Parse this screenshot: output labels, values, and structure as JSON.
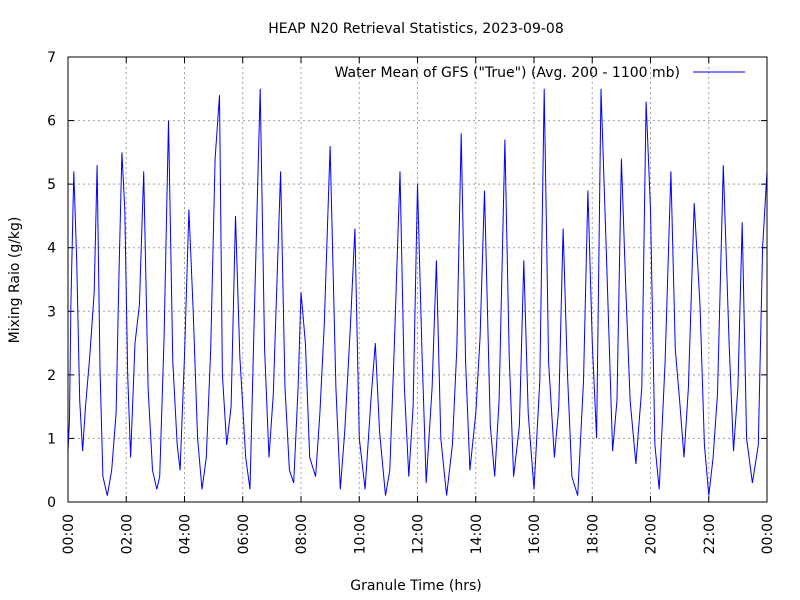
{
  "chart_data": {
    "type": "line",
    "title": "HEAP N20 Retrieval Statistics, 2023-09-08",
    "xlabel": "Granule Time (hrs)",
    "ylabel": "Mixing Raio (g/kg)",
    "xlim": [
      0,
      24
    ],
    "ylim": [
      0,
      7
    ],
    "grid": true,
    "legend_position": "top-right",
    "x_tick_values": [
      0,
      2,
      4,
      6,
      8,
      10,
      12,
      14,
      16,
      18,
      20,
      22,
      24
    ],
    "x_tick_labels": [
      "00:00",
      "02:00",
      "04:00",
      "06:00",
      "08:00",
      "10:00",
      "12:00",
      "14:00",
      "16:00",
      "18:00",
      "20:00",
      "22:00",
      "00:00"
    ],
    "y_tick_values": [
      0,
      1,
      2,
      3,
      4,
      5,
      6,
      7
    ],
    "y_tick_labels": [
      "0",
      "1",
      "2",
      "3",
      "4",
      "5",
      "6",
      "7"
    ],
    "series": [
      {
        "name": "Water Mean of GFS (\"True\") (Avg. 200 - 1100 mb)",
        "color": "#0000ff",
        "x": [
          0.0,
          0.05,
          0.1,
          0.2,
          0.3,
          0.4,
          0.5,
          0.6,
          0.75,
          0.9,
          1.0,
          1.1,
          1.2,
          1.35,
          1.5,
          1.65,
          1.75,
          1.85,
          1.95,
          2.05,
          2.15,
          2.3,
          2.45,
          2.6,
          2.75,
          2.9,
          3.05,
          3.15,
          3.3,
          3.45,
          3.6,
          3.75,
          3.85,
          4.0,
          4.15,
          4.3,
          4.45,
          4.6,
          4.75,
          4.9,
          5.05,
          5.2,
          5.3,
          5.45,
          5.6,
          5.75,
          5.9,
          6.1,
          6.25,
          6.4,
          6.6,
          6.75,
          6.9,
          7.05,
          7.15,
          7.3,
          7.45,
          7.6,
          7.75,
          7.9,
          8.0,
          8.15,
          8.3,
          8.5,
          8.65,
          8.8,
          9.0,
          9.2,
          9.35,
          9.5,
          9.7,
          9.85,
          10.0,
          10.2,
          10.4,
          10.55,
          10.7,
          10.9,
          11.05,
          11.2,
          11.4,
          11.55,
          11.7,
          11.85,
          12.0,
          12.15,
          12.3,
          12.5,
          12.65,
          12.8,
          13.0,
          13.2,
          13.35,
          13.5,
          13.65,
          13.8,
          14.0,
          14.15,
          14.3,
          14.5,
          14.65,
          14.8,
          15.0,
          15.15,
          15.3,
          15.5,
          15.65,
          15.8,
          16.0,
          16.2,
          16.35,
          16.5,
          16.7,
          16.85,
          17.0,
          17.15,
          17.3,
          17.5,
          17.7,
          17.85,
          18.0,
          18.15,
          18.3,
          18.5,
          18.7,
          18.85,
          19.0,
          19.15,
          19.3,
          19.5,
          19.7,
          19.85,
          20.0,
          20.15,
          20.3,
          20.5,
          20.7,
          20.85,
          21.0,
          21.15,
          21.3,
          21.5,
          21.7,
          21.85,
          22.0,
          22.15,
          22.3,
          22.5,
          22.7,
          22.85,
          23.0,
          23.15,
          23.3,
          23.5,
          23.7,
          23.85,
          24.0
        ],
        "y": [
          0.8,
          1.3,
          3.1,
          5.2,
          3.8,
          1.6,
          0.8,
          1.5,
          2.3,
          3.3,
          5.3,
          2.1,
          0.4,
          0.1,
          0.5,
          1.4,
          3.6,
          5.5,
          4.6,
          2.0,
          0.7,
          2.5,
          3.1,
          5.2,
          1.8,
          0.5,
          0.2,
          0.4,
          2.6,
          6.0,
          2.2,
          0.9,
          0.5,
          2.3,
          4.6,
          3.0,
          1.0,
          0.2,
          0.7,
          2.4,
          5.4,
          6.4,
          2.0,
          0.9,
          1.5,
          4.5,
          2.3,
          0.7,
          0.2,
          3.0,
          6.5,
          2.4,
          0.7,
          1.7,
          3.1,
          5.2,
          1.8,
          0.5,
          0.3,
          1.8,
          3.3,
          2.5,
          0.7,
          0.4,
          1.4,
          2.8,
          5.6,
          1.8,
          0.2,
          1.1,
          2.8,
          4.3,
          1.0,
          0.2,
          1.6,
          2.5,
          1.1,
          0.1,
          0.5,
          2.4,
          5.2,
          1.8,
          0.4,
          1.5,
          5.0,
          2.4,
          0.3,
          1.8,
          3.8,
          1.0,
          0.1,
          0.9,
          2.4,
          5.8,
          2.2,
          0.5,
          1.4,
          2.6,
          4.9,
          1.2,
          0.4,
          1.6,
          5.7,
          2.3,
          0.4,
          1.2,
          3.8,
          1.4,
          0.2,
          1.9,
          6.5,
          2.2,
          0.7,
          1.5,
          4.3,
          2.0,
          0.4,
          0.1,
          1.9,
          4.9,
          2.5,
          1.0,
          6.5,
          3.7,
          0.8,
          1.6,
          5.4,
          3.4,
          1.6,
          0.6,
          1.8,
          6.3,
          4.6,
          0.9,
          0.2,
          2.2,
          5.2,
          2.4,
          1.6,
          0.7,
          1.8,
          4.7,
          3.1,
          0.9,
          0.1,
          0.7,
          1.7,
          5.3,
          2.5,
          0.8,
          1.8,
          4.4,
          1.0,
          0.3,
          0.9,
          4.0,
          5.2
        ]
      }
    ]
  }
}
